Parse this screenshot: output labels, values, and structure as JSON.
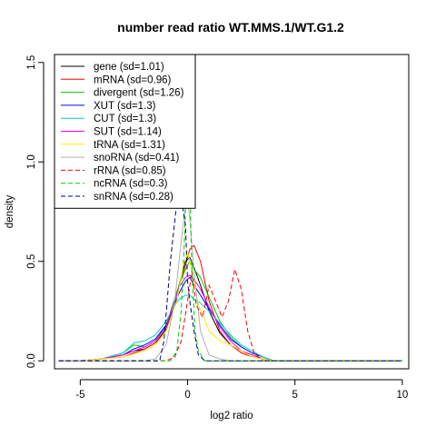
{
  "chart_data": {
    "type": "line",
    "title": "number read ratio WT.MMS.1/WT.G1.2",
    "xlabel": "log2 ratio",
    "ylabel": "density",
    "xlim": [
      -6.2,
      10.3
    ],
    "ylim": [
      -0.04,
      1.54
    ],
    "xticks": [
      -5,
      0,
      5,
      10
    ],
    "xtick_labels": [
      "-5",
      "0",
      "5",
      "10"
    ],
    "yticks": [
      0.0,
      0.5,
      1.0,
      1.5
    ],
    "ytick_labels": [
      "0.0",
      "0.5",
      "1.0",
      "1.5"
    ],
    "grid": false,
    "legend_position": "top-left",
    "series": [
      {
        "name": "gene (sd=1.01)",
        "color": "#000000",
        "dash": "solid",
        "x": [
          -6,
          -5,
          -4,
          -3,
          -2.5,
          -2,
          -1.5,
          -1,
          -0.7,
          -0.4,
          -0.1,
          0.1,
          0.3,
          0.6,
          1,
          1.5,
          2,
          2.5,
          3,
          3.5,
          4,
          6,
          10
        ],
        "y": [
          0,
          0,
          0.01,
          0.03,
          0.05,
          0.06,
          0.09,
          0.16,
          0.26,
          0.38,
          0.5,
          0.52,
          0.47,
          0.38,
          0.25,
          0.14,
          0.08,
          0.05,
          0.03,
          0.01,
          0,
          0,
          0
        ]
      },
      {
        "name": "mRNA (sd=0.96)",
        "color": "#ff0000",
        "dash": "solid",
        "x": [
          -6,
          -5,
          -4,
          -3,
          -2.5,
          -2,
          -1.5,
          -1,
          -0.7,
          -0.4,
          -0.1,
          0.1,
          0.3,
          0.6,
          1,
          1.5,
          2,
          2.5,
          3,
          3.5,
          4,
          6,
          10
        ],
        "y": [
          0,
          0,
          0.01,
          0.02,
          0.04,
          0.06,
          0.09,
          0.15,
          0.25,
          0.38,
          0.48,
          0.56,
          0.58,
          0.5,
          0.3,
          0.15,
          0.08,
          0.04,
          0.02,
          0.01,
          0,
          0,
          0
        ]
      },
      {
        "name": "divergent (sd=1.26)",
        "color": "#00cc00",
        "dash": "solid",
        "x": [
          -6,
          -5,
          -4,
          -3,
          -2.5,
          -2,
          -1.5,
          -1,
          -0.7,
          -0.4,
          -0.1,
          0.1,
          0.3,
          0.6,
          1,
          1.5,
          2,
          2.5,
          3,
          3.5,
          4,
          6,
          10
        ],
        "y": [
          0,
          0,
          0.01,
          0.04,
          0.08,
          0.07,
          0.1,
          0.18,
          0.28,
          0.38,
          0.46,
          0.5,
          0.46,
          0.42,
          0.32,
          0.2,
          0.12,
          0.07,
          0.04,
          0.02,
          0,
          0,
          0
        ]
      },
      {
        "name": "XUT (sd=1.3)",
        "color": "#0000ff",
        "dash": "solid",
        "x": [
          -6,
          -5,
          -4,
          -3,
          -2.5,
          -2,
          -1.5,
          -1,
          -0.7,
          -0.4,
          -0.1,
          0.1,
          0.3,
          0.6,
          1,
          1.5,
          2,
          2.5,
          3,
          3.5,
          4,
          6,
          10
        ],
        "y": [
          0,
          0,
          0.01,
          0.03,
          0.06,
          0.08,
          0.11,
          0.18,
          0.26,
          0.34,
          0.4,
          0.42,
          0.38,
          0.33,
          0.26,
          0.18,
          0.11,
          0.07,
          0.04,
          0.02,
          0,
          0,
          0
        ]
      },
      {
        "name": "CUT (sd=1.3)",
        "color": "#00d0d0",
        "dash": "solid",
        "x": [
          -6,
          -5,
          -4,
          -3,
          -2.5,
          -2,
          -1.5,
          -1,
          -0.7,
          -0.4,
          -0.1,
          0.1,
          0.3,
          0.6,
          1,
          1.5,
          2,
          2.5,
          3,
          3.5,
          4,
          6,
          10
        ],
        "y": [
          0,
          0,
          0.01,
          0.04,
          0.09,
          0.1,
          0.13,
          0.2,
          0.26,
          0.31,
          0.33,
          0.33,
          0.31,
          0.29,
          0.25,
          0.19,
          0.13,
          0.08,
          0.05,
          0.02,
          0,
          0,
          0
        ]
      },
      {
        "name": "SUT (sd=1.14)",
        "color": "#ff00ff",
        "dash": "solid",
        "x": [
          -6,
          -5,
          -4,
          -3,
          -2.5,
          -2,
          -1.5,
          -1,
          -0.7,
          -0.4,
          -0.1,
          0.1,
          0.3,
          0.6,
          1,
          1.5,
          2,
          2.5,
          3,
          3.5,
          4,
          6,
          10
        ],
        "y": [
          0,
          0,
          0.01,
          0.03,
          0.05,
          0.07,
          0.1,
          0.17,
          0.27,
          0.37,
          0.42,
          0.43,
          0.41,
          0.36,
          0.27,
          0.17,
          0.1,
          0.05,
          0.03,
          0.01,
          0,
          0,
          0
        ]
      },
      {
        "name": "tRNA (sd=1.31)",
        "color": "#ffee00",
        "dash": "solid",
        "x": [
          -6,
          -5,
          -3,
          -2,
          -1.5,
          -1,
          -0.5,
          -0.2,
          0,
          0.2,
          0.5,
          1,
          1.5,
          2,
          2.5,
          3,
          4,
          6,
          10
        ],
        "y": [
          0,
          0,
          0.02,
          0.05,
          0.08,
          0.15,
          0.3,
          0.48,
          0.55,
          0.45,
          0.28,
          0.15,
          0.1,
          0.08,
          0.05,
          0.02,
          0,
          0,
          0
        ]
      },
      {
        "name": "snoRNA (sd=0.41)",
        "color": "#b0b0b0",
        "dash": "solid",
        "x": [
          -6,
          -2,
          -1.5,
          -1,
          -0.6,
          -0.3,
          -0.1,
          0,
          0.1,
          0.3,
          0.6,
          1,
          1.5,
          2,
          10
        ],
        "y": [
          0,
          0,
          0.01,
          0.08,
          0.3,
          0.6,
          0.78,
          0.8,
          0.72,
          0.45,
          0.15,
          0.03,
          0.01,
          0,
          0
        ]
      },
      {
        "name": "rRNA (sd=0.85)",
        "color": "#ff0000",
        "dash": "dashed",
        "x": [
          -6,
          -1,
          -0.6,
          -0.3,
          0,
          0.2,
          0.4,
          0.7,
          1,
          1.3,
          1.6,
          1.9,
          2.2,
          2.5,
          2.8,
          3.1,
          3.5,
          10
        ],
        "y": [
          0,
          0,
          0.02,
          0.1,
          0.3,
          0.45,
          0.28,
          0.22,
          0.38,
          0.3,
          0.22,
          0.3,
          0.46,
          0.36,
          0.15,
          0.04,
          0,
          0
        ]
      },
      {
        "name": "ncRNA (sd=0.3)",
        "color": "#00cc00",
        "dash": "dashed",
        "x": [
          -6,
          -0.8,
          -0.5,
          -0.3,
          -0.15,
          0,
          0.1,
          0.2,
          0.35,
          0.5,
          0.8,
          10
        ],
        "y": [
          0,
          0,
          0.05,
          0.25,
          0.6,
          1.1,
          0.9,
          0.45,
          0.15,
          0.05,
          0,
          0
        ]
      },
      {
        "name": "snRNA (sd=0.28)",
        "color": "#000080",
        "dash": "dashed",
        "x": [
          -6,
          -1.3,
          -1.1,
          -0.8,
          -0.5,
          -0.3,
          -0.1,
          0,
          0.1,
          0.3,
          0.5,
          0.8,
          1.1,
          10
        ],
        "y": [
          0,
          0,
          0.1,
          0.5,
          0.8,
          0.82,
          0.68,
          0.4,
          0.3,
          0.15,
          0.03,
          0,
          0,
          0
        ]
      }
    ]
  }
}
